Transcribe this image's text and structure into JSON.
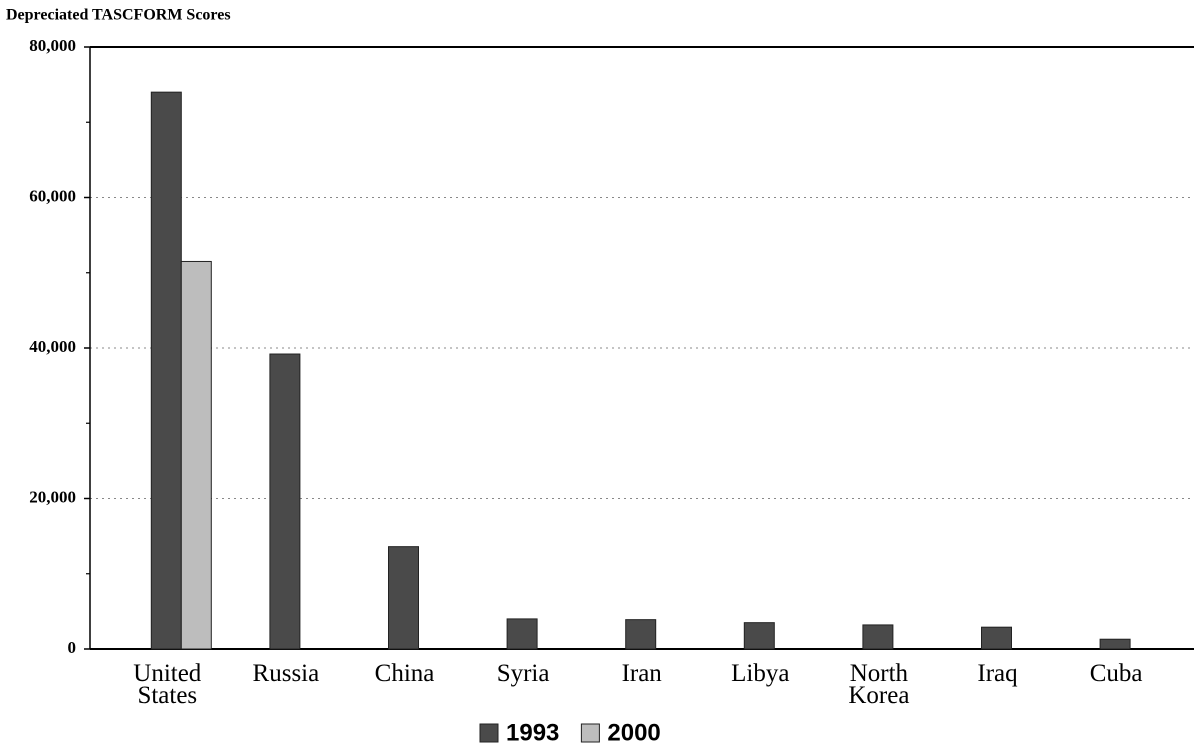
{
  "chart_data": {
    "type": "bar",
    "y_label": "Depreciated TASCFORM Scores",
    "categories": [
      "United States",
      "Russia",
      "China",
      "Syria",
      "Iran",
      "Libya",
      "North Korea",
      "Iraq",
      "Cuba"
    ],
    "series": [
      {
        "name": "1993",
        "color": "#4a4a4a",
        "values": [
          74000,
          39200,
          13600,
          4000,
          3900,
          3500,
          3200,
          2900,
          1300
        ]
      },
      {
        "name": "2000",
        "color": "#bdbdbd",
        "values": [
          51500,
          null,
          null,
          null,
          null,
          null,
          null,
          null,
          null
        ]
      }
    ],
    "ylim": [
      0,
      80000
    ],
    "yticks": [
      0,
      {
        "value": 20000,
        "label": "20,000"
      },
      {
        "value": 40000,
        "label": "40,000"
      },
      {
        "value": 60000,
        "label": "60,000"
      },
      {
        "value": 80000,
        "label": "80,000"
      }
    ],
    "yminor": [
      10000,
      30000,
      50000,
      70000
    ],
    "grid": true,
    "legend": "bottom"
  }
}
